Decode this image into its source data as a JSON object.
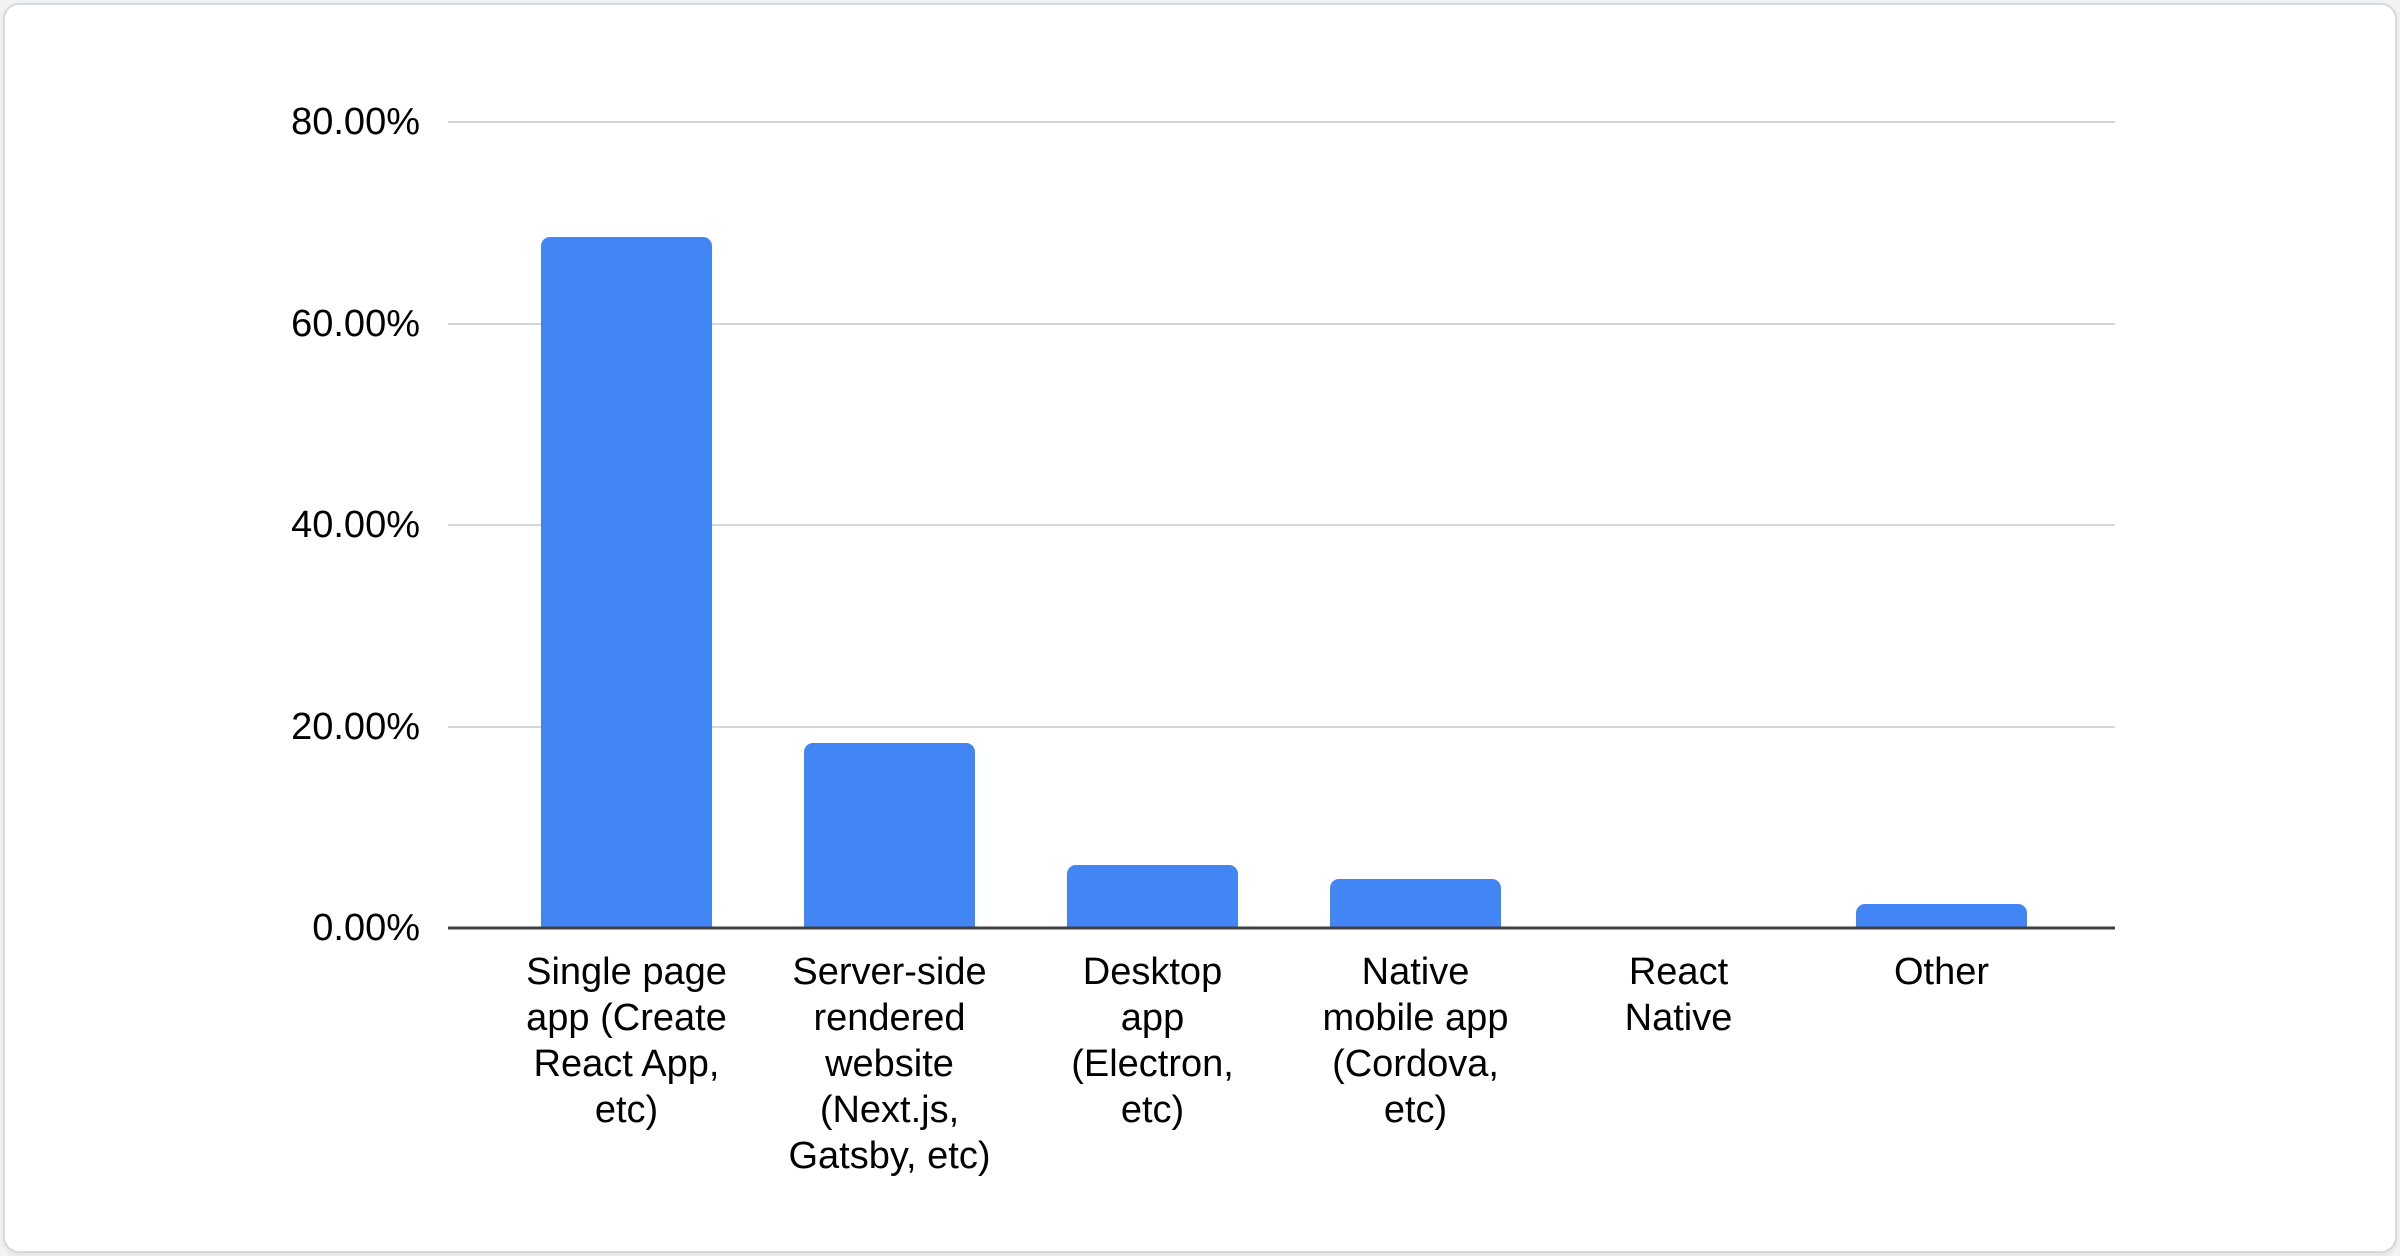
{
  "chart_data": {
    "type": "bar",
    "title": "",
    "xlabel": "",
    "ylabel": "",
    "legend": "none",
    "grid": "horizontal",
    "categories": [
      "Single page app (Create React App, etc)",
      "Server-side rendered website (Next.js, Gatsby, etc)",
      "Desktop app (Electron, etc)",
      "Native mobile app (Cordova, etc)",
      "React Native",
      "Other"
    ],
    "categories_wrapped": [
      "Single page\napp (Create\nReact App,\netc)",
      "Server-side\nrendered\nwebsite\n(Next.js,\nGatsby, etc)",
      "Desktop\napp\n(Electron,\netc)",
      "Native\nmobile app\n(Cordova,\netc)",
      "React\nNative",
      "Other"
    ],
    "values": [
      68.6,
      18.4,
      6.3,
      4.9,
      0,
      2.4
    ],
    "unit": "%",
    "ylim": [
      0,
      80
    ],
    "yticks": [
      80,
      60,
      40,
      20,
      0
    ],
    "ytick_labels": [
      "80.00%",
      "60.00%",
      "40.00%",
      "20.00%",
      "0.00%"
    ],
    "bar_color": "#4285f4",
    "axis_line_color": "#3c4043",
    "gridline_color": "#d6d6d6"
  }
}
